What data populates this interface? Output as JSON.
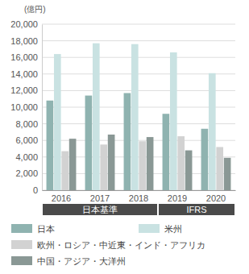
{
  "chart_data": {
    "type": "bar",
    "ylabel": "(億円)",
    "categories": [
      "2016",
      "2017",
      "2018",
      "2019",
      "2020"
    ],
    "series": [
      {
        "name": "日本",
        "color": "#8fb3b0",
        "values": [
          10800,
          11400,
          11700,
          9200,
          7400
        ]
      },
      {
        "name": "米州",
        "color": "#c9e2e2",
        "values": [
          16400,
          17700,
          17600,
          16600,
          14100
        ]
      },
      {
        "name": "欧州・ロシア・中近東・インド・アフリカ",
        "color": "#d2d2d2",
        "values": [
          4700,
          5500,
          5900,
          6500,
          5200
        ]
      },
      {
        "name": "中国・アジア・大洋州",
        "color": "#8a9895",
        "values": [
          6200,
          6700,
          6400,
          4800,
          3900
        ]
      }
    ],
    "ylim": [
      0,
      20000
    ],
    "yticks": [
      0,
      {
        "value": 2000,
        "label": "2,000"
      },
      {
        "value": 4000,
        "label": "4,000"
      },
      {
        "value": 6000,
        "label": "6,000"
      },
      {
        "value": 8000,
        "label": "8,000"
      },
      {
        "value": 10000,
        "label": "10,000"
      },
      {
        "value": 12000,
        "label": "12,000"
      },
      {
        "value": 14000,
        "label": "14,000"
      },
      {
        "value": 16000,
        "label": "16,000"
      },
      {
        "value": 18000,
        "label": "18,000"
      },
      {
        "value": 20000,
        "label": "20,000"
      }
    ],
    "grid": true,
    "legend": "bottom",
    "annotations": [
      {
        "text": "日本基準",
        "from": "2016",
        "to": "2018"
      },
      {
        "text": "IFRS",
        "from": "2019",
        "to": "2020"
      }
    ]
  }
}
